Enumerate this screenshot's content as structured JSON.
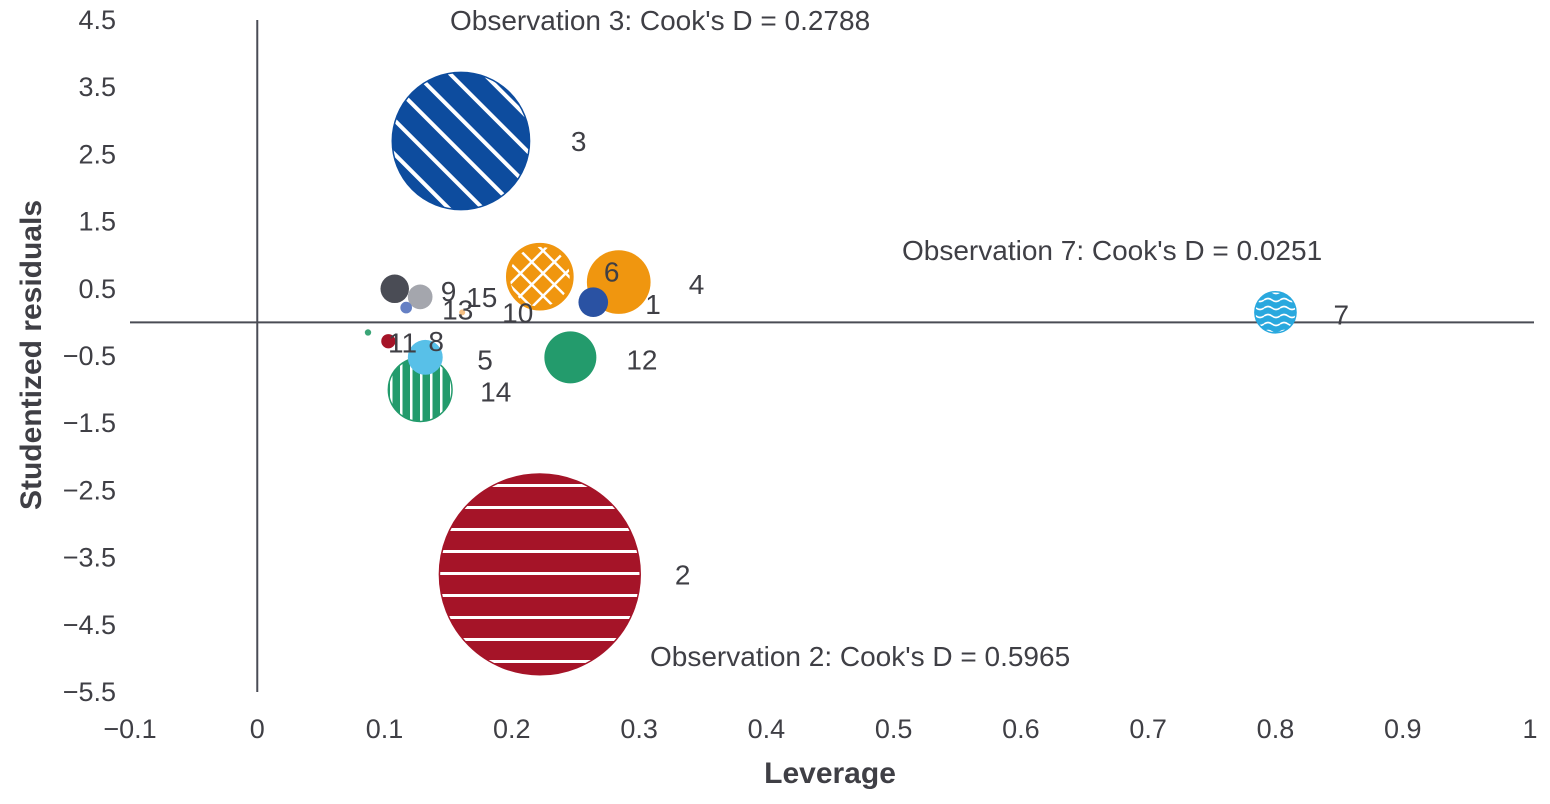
{
  "chart_data": {
    "type": "scatter",
    "subtype": "bubble",
    "xlabel": "Leverage",
    "ylabel": "Studentized residuals",
    "xlim": [
      -0.1,
      1
    ],
    "ylim": [
      -5.5,
      4.5
    ],
    "x_ticks": [
      "−0.1",
      "0",
      "0.1",
      "0.2",
      "0.3",
      "0.4",
      "0.5",
      "0.6",
      "0.7",
      "0.8",
      "0.9",
      "1"
    ],
    "y_ticks": [
      "4.5",
      "3.5",
      "2.5",
      "1.5",
      "0.5",
      "−0.5",
      "−1.5",
      "−2.5",
      "−3.5",
      "−4.5",
      "−5.5"
    ],
    "grid": false,
    "legend": "none",
    "points": [
      {
        "label": "1",
        "x": 0.264,
        "y": 0.3,
        "size": 0.013,
        "color": "#2a52a3",
        "pattern": "solid"
      },
      {
        "label": "2",
        "x": 0.222,
        "y": -3.75,
        "size": 0.5965,
        "color": "#a51428",
        "pattern": "horizontal-stripes"
      },
      {
        "label": "3",
        "x": 0.16,
        "y": 2.7,
        "size": 0.2788,
        "color": "#0d4c9e",
        "pattern": "diagonal-stripes"
      },
      {
        "label": "4",
        "x": 0.284,
        "y": 0.6,
        "size": 0.06,
        "color": "#f0960f",
        "pattern": "solid"
      },
      {
        "label": "5",
        "x": 0.132,
        "y": -0.52,
        "size": 0.018,
        "color": "#58c0e8",
        "pattern": "solid"
      },
      {
        "label": "6",
        "x": 0.222,
        "y": 0.68,
        "size": 0.06,
        "color": "#f0960f",
        "pattern": "crosshatch"
      },
      {
        "label": "7",
        "x": 0.8,
        "y": 0.15,
        "size": 0.0251,
        "color": "#29a8de",
        "pattern": "waves"
      },
      {
        "label": "8",
        "x": 0.103,
        "y": -0.28,
        "size": 0.003,
        "color": "#a51428",
        "pattern": "solid"
      },
      {
        "label": "9",
        "x": 0.108,
        "y": 0.5,
        "size": 0.012,
        "color": "#4a4c55",
        "pattern": "solid"
      },
      {
        "label": "10",
        "x": 0.161,
        "y": 0.15,
        "size": 0.0003,
        "color": "#f5c085",
        "pattern": "solid"
      },
      {
        "label": "11",
        "x": 0.087,
        "y": -0.15,
        "size": 0.0006,
        "color": "#3aa577",
        "pattern": "solid"
      },
      {
        "label": "12",
        "x": 0.246,
        "y": -0.52,
        "size": 0.04,
        "color": "#239b6c",
        "pattern": "solid"
      },
      {
        "label": "13",
        "x": 0.117,
        "y": 0.22,
        "size": 0.002,
        "color": "#6580c4",
        "pattern": "solid"
      },
      {
        "label": "14",
        "x": 0.128,
        "y": -1.0,
        "size": 0.06,
        "color": "#239b6c",
        "pattern": "vertical-stripes"
      },
      {
        "label": "15",
        "x": 0.128,
        "y": 0.38,
        "size": 0.009,
        "color": "#a4a6ad",
        "pattern": "solid"
      }
    ],
    "annotations": [
      "Observation 3: Cook's D = 0.2788",
      "Observation 7: Cook's D = 0.0251",
      "Observation 2: Cook's D = 0.5965"
    ]
  }
}
